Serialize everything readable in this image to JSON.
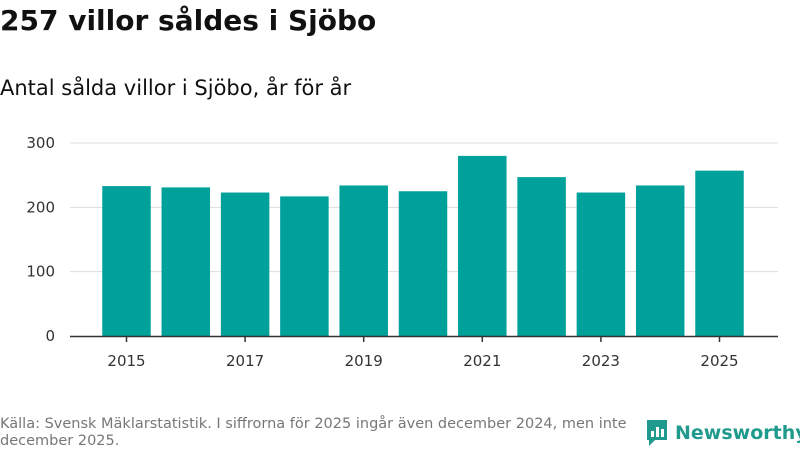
{
  "header": {
    "title": "257 villor såldes i Sjöbo",
    "subtitle": "Antal sålda villor i Sjöbo, år för år"
  },
  "chart_data": {
    "type": "bar",
    "categories": [
      "2015",
      "2016",
      "2017",
      "2018",
      "2019",
      "2020",
      "2021",
      "2022",
      "2023",
      "2024",
      "2025"
    ],
    "values": [
      233,
      231,
      223,
      217,
      234,
      225,
      280,
      247,
      223,
      234,
      257
    ],
    "x_tick_labels": [
      "2015",
      "2017",
      "2019",
      "2021",
      "2023",
      "2025"
    ],
    "y_tick_labels": [
      "0",
      "100",
      "200",
      "300"
    ],
    "ylim": [
      0,
      300
    ],
    "xlabel": "",
    "ylabel": "",
    "grid": true,
    "bar_color": "#00a19a"
  },
  "footer": {
    "source": "Källa: Svensk Mäklarstatistik. I siffrorna för 2025 ingår även december 2024, men inte december 2025."
  },
  "brand": {
    "name": "Newsworthy",
    "color": "#1f9a8c",
    "icon": "newsworthy-logo-icon"
  }
}
